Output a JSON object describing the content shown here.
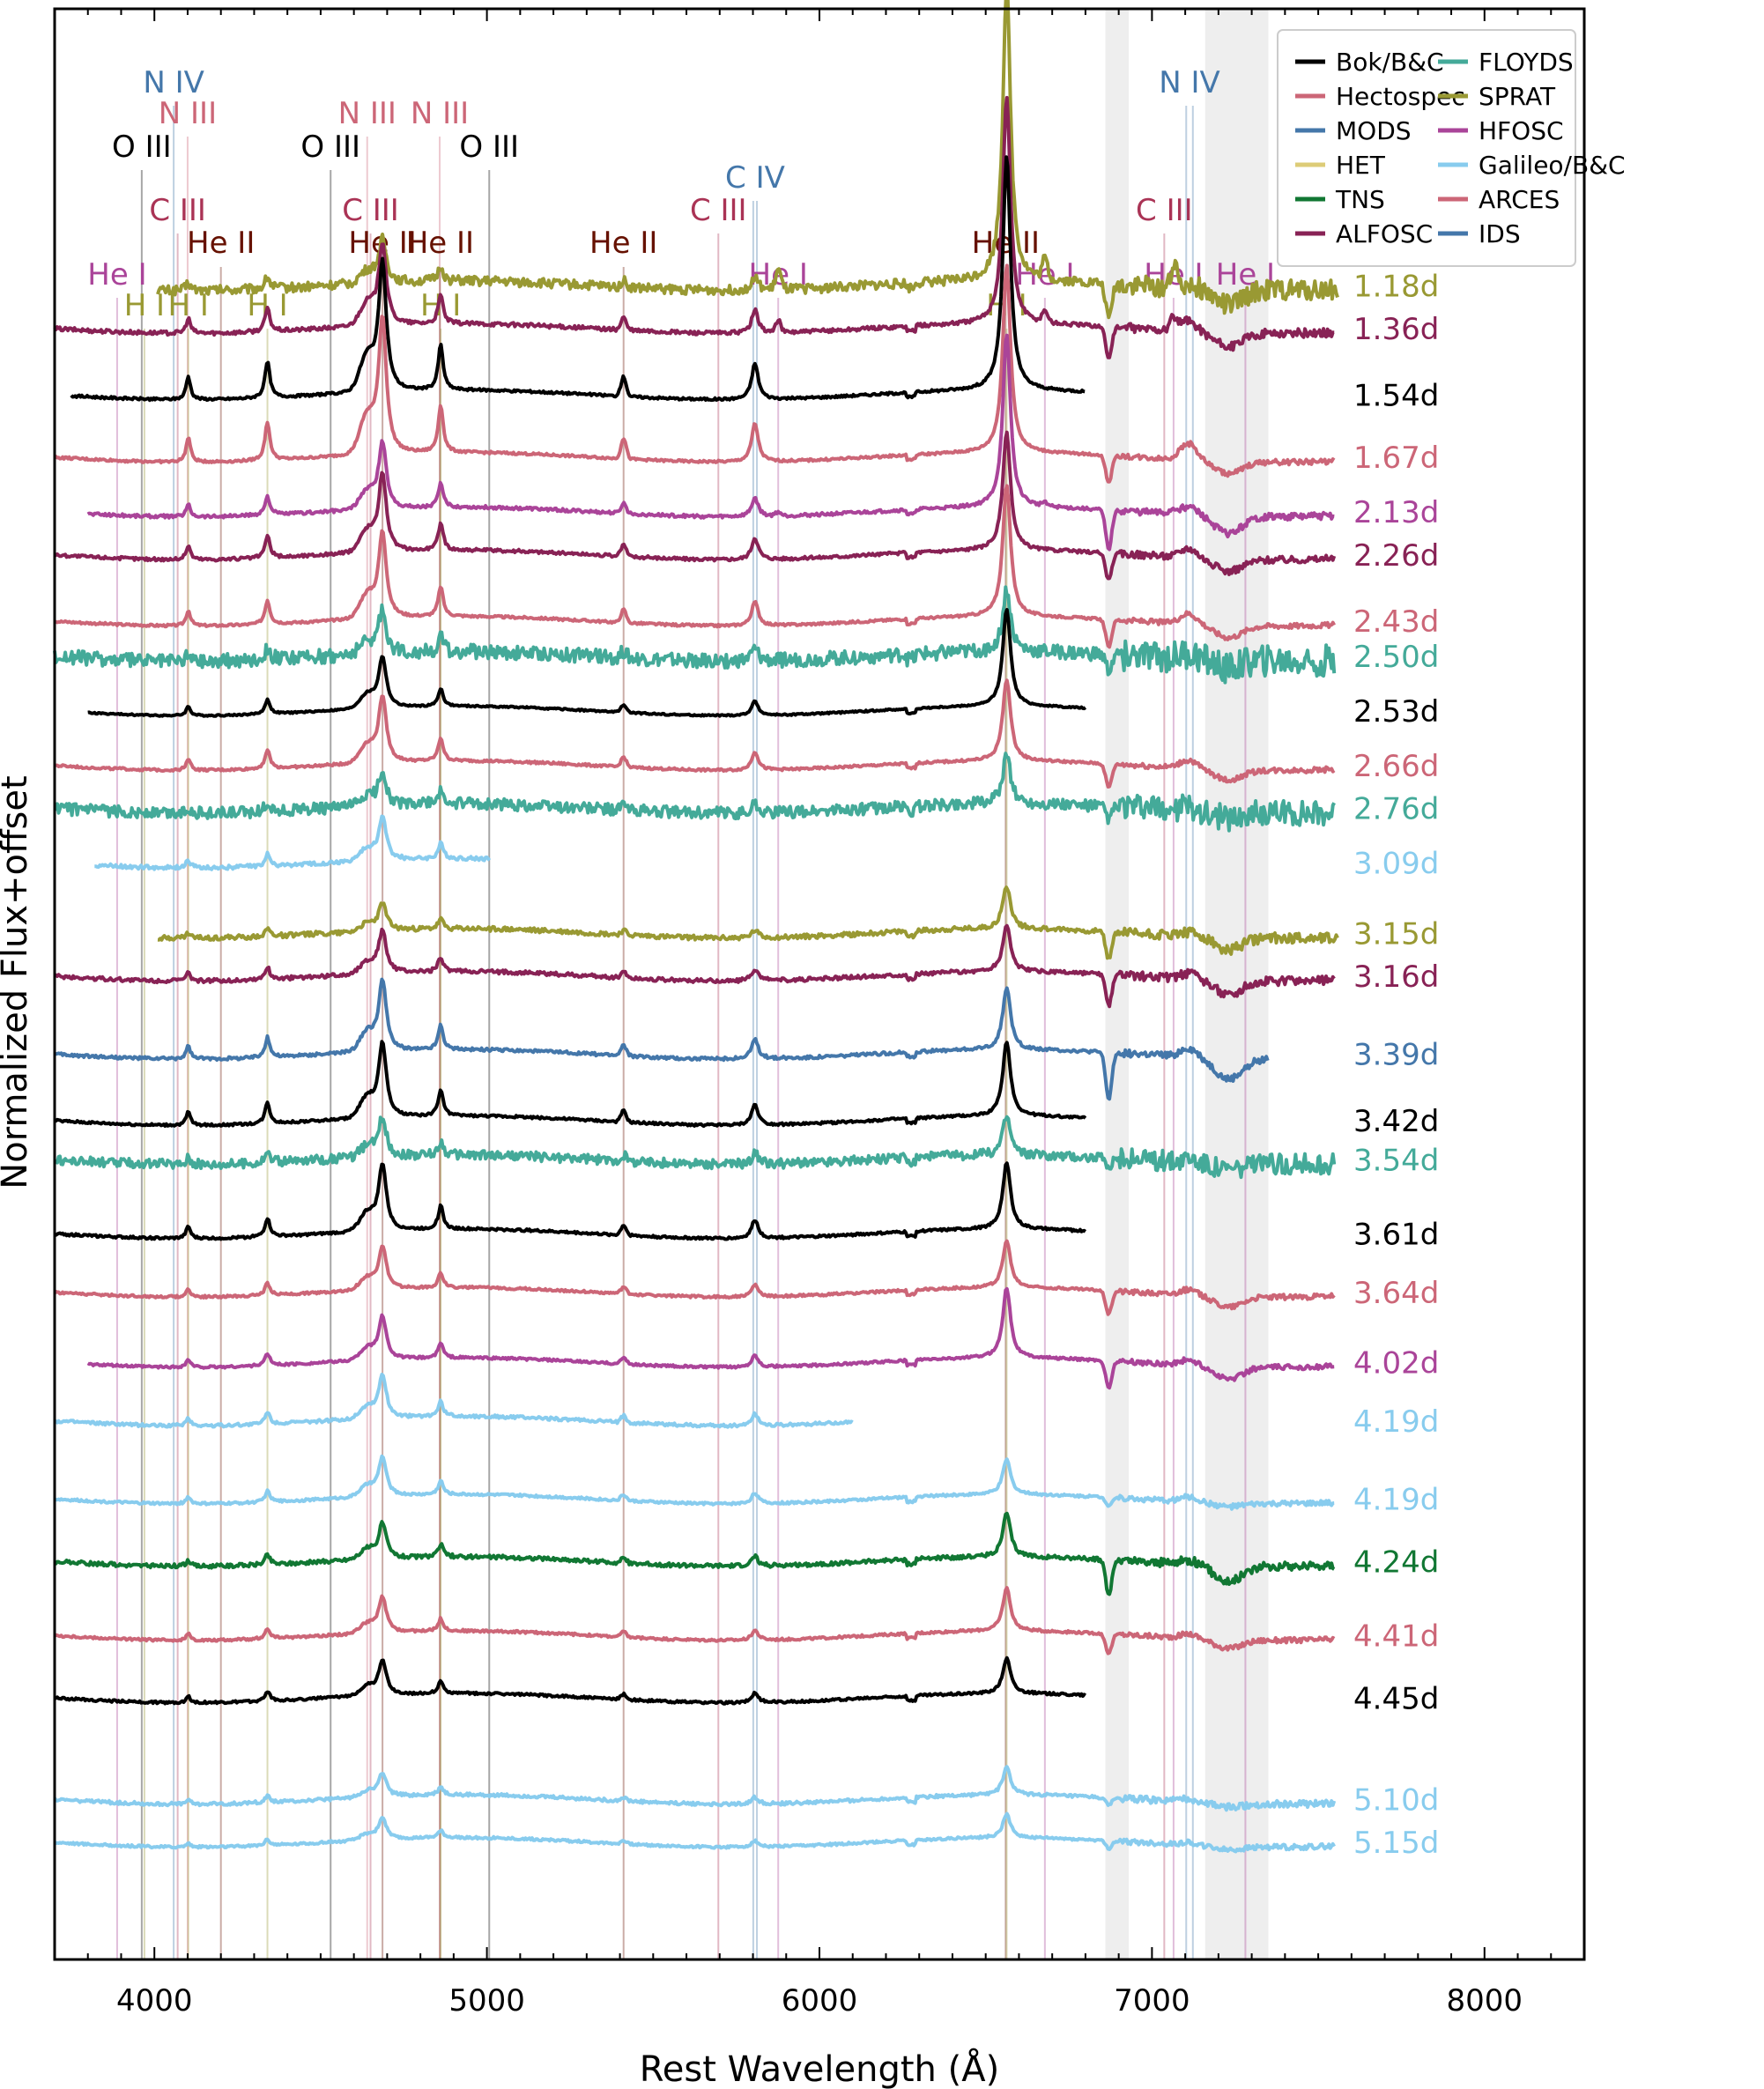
{
  "chart_data": {
    "type": "line",
    "title": "",
    "xlabel": "Rest Wavelength (Å)",
    "ylabel": "Normalized Flux+offset",
    "xlim": [
      3700,
      8300
    ],
    "ylim": [
      -1.0,
      24.0
    ],
    "x_ticks": [
      4000,
      5000,
      6000,
      7000,
      8000
    ],
    "grid": false,
    "legend_position": "top-right",
    "telluric_bands": [
      [
        6860,
        6930
      ],
      [
        7160,
        7350
      ]
    ],
    "instruments": [
      {
        "name": "Bok/B&C",
        "color": "#000000"
      },
      {
        "name": "Hectospec",
        "color": "#cc6677"
      },
      {
        "name": "MODS",
        "color": "#4477aa"
      },
      {
        "name": "HET",
        "color": "#ddcc77"
      },
      {
        "name": "TNS",
        "color": "#117733"
      },
      {
        "name": "ALFOSC",
        "color": "#882255"
      },
      {
        "name": "FLOYDS",
        "color": "#44aa99"
      },
      {
        "name": "SPRAT",
        "color": "#999933"
      },
      {
        "name": "HFOSC",
        "color": "#aa4499"
      },
      {
        "name": "Galileo/B&C",
        "color": "#88ccee"
      },
      {
        "name": "ARCES",
        "color": "#cc6677"
      },
      {
        "name": "IDS",
        "color": "#4477aa"
      }
    ],
    "line_ids": [
      {
        "label": "N IV",
        "color": "#4477aa",
        "lines": [
          4058
        ]
      },
      {
        "label": "N III",
        "color": "#cc6677",
        "lines": [
          4100
        ]
      },
      {
        "label": "O III",
        "color": "#000000",
        "lines": [
          3962
        ]
      },
      {
        "label": "C III",
        "color": "#aa3355",
        "lines": [
          4070
        ]
      },
      {
        "label": "He II",
        "color": "#661100",
        "lines": [
          4200
        ]
      },
      {
        "label": "He I",
        "color": "#aa4499",
        "lines": [
          3888
        ]
      },
      {
        "label": "H I",
        "color": "#999933",
        "lines": [
          3970
        ]
      },
      {
        "label": "H I",
        "color": "#999933",
        "lines": [
          4102
        ]
      },
      {
        "label": "H I",
        "color": "#999933",
        "lines": [
          4340
        ]
      },
      {
        "label": "O III",
        "color": "#000000",
        "lines": [
          4530
        ]
      },
      {
        "label": "N III",
        "color": "#cc6677",
        "lines": [
          4640
        ]
      },
      {
        "label": "C III",
        "color": "#aa3355",
        "lines": [
          4650
        ]
      },
      {
        "label": "He II",
        "color": "#661100",
        "lines": [
          4686
        ]
      },
      {
        "label": "N III",
        "color": "#cc6677",
        "lines": [
          4858
        ]
      },
      {
        "label": "He II",
        "color": "#661100",
        "lines": [
          4859
        ]
      },
      {
        "label": "H I",
        "color": "#999933",
        "lines": [
          4861
        ]
      },
      {
        "label": "O III",
        "color": "#000000",
        "lines": [
          5007
        ]
      },
      {
        "label": "He II",
        "color": "#661100",
        "lines": [
          5411
        ]
      },
      {
        "label": "C III",
        "color": "#aa3355",
        "lines": [
          5696
        ]
      },
      {
        "label": "C IV",
        "color": "#4477aa",
        "lines": [
          5801,
          5812
        ]
      },
      {
        "label": "He I",
        "color": "#aa4499",
        "lines": [
          5876
        ]
      },
      {
        "label": "He II",
        "color": "#661100",
        "lines": [
          6560
        ]
      },
      {
        "label": "H I",
        "color": "#999933",
        "lines": [
          6563
        ]
      },
      {
        "label": "He I",
        "color": "#aa4499",
        "lines": [
          6678
        ]
      },
      {
        "label": "C III",
        "color": "#aa3355",
        "lines": [
          7037
        ]
      },
      {
        "label": "N IV",
        "color": "#4477aa",
        "lines": [
          7103,
          7123
        ]
      },
      {
        "label": "He I",
        "color": "#aa4499",
        "lines": [
          7065
        ]
      },
      {
        "label": "He I",
        "color": "#aa4499",
        "lines": [
          7281
        ]
      }
    ],
    "series": [
      {
        "epoch": "1.18d",
        "instrument": "SPRAT",
        "color": "#999933",
        "x_range": [
          4010,
          7560
        ],
        "offset": 20.45,
        "ha": 3.8,
        "heii": 0.55,
        "hei": 0.25,
        "noise": 0.08,
        "telluric": 0.45
      },
      {
        "epoch": "1.36d",
        "instrument": "ALFOSC",
        "color": "#882255",
        "x_range": [
          3700,
          7550
        ],
        "offset": 19.9,
        "ha": 2.9,
        "heii": 1.05,
        "hei": 0.15,
        "noise": 0.05,
        "telluric": 0.4
      },
      {
        "epoch": "1.54d",
        "instrument": "Bok/B&C",
        "color": "#000000",
        "x_range": [
          3750,
          6800
        ],
        "offset": 19.05,
        "ha": 3.0,
        "heii": 1.65,
        "hei": 0.0,
        "noise": 0.03,
        "telluric": 0.0
      },
      {
        "epoch": "1.67d",
        "instrument": "Hectospec",
        "color": "#cc6677",
        "x_range": [
          3700,
          7550
        ],
        "offset": 18.25,
        "ha": 2.4,
        "heii": 1.75,
        "hei": 0.0,
        "noise": 0.03,
        "telluric": 0.35
      },
      {
        "epoch": "2.13d",
        "instrument": "HFOSC",
        "color": "#aa4499",
        "x_range": [
          3800,
          7550
        ],
        "offset": 17.55,
        "ha": 2.2,
        "heii": 0.85,
        "hei": 0.05,
        "noise": 0.04,
        "telluric": 0.5
      },
      {
        "epoch": "2.26d",
        "instrument": "ALFOSC",
        "color": "#882255",
        "x_range": [
          3700,
          7550
        ],
        "offset": 17.0,
        "ha": 1.5,
        "heii": 1.0,
        "hei": 0.0,
        "noise": 0.04,
        "telluric": 0.35
      },
      {
        "epoch": "2.43d",
        "instrument": "Hectospec",
        "color": "#cc6677",
        "x_range": [
          3700,
          7550
        ],
        "offset": 16.15,
        "ha": 1.7,
        "heii": 1.1,
        "hei": 0.0,
        "noise": 0.03,
        "telluric": 0.35
      },
      {
        "epoch": "2.50d",
        "instrument": "FLOYDS",
        "color": "#44aa99",
        "x_range": [
          3700,
          7550
        ],
        "offset": 15.7,
        "ha": 0.8,
        "heii": 0.55,
        "hei": 0.0,
        "noise": 0.12,
        "telluric": 0.2
      },
      {
        "epoch": "2.53d",
        "instrument": "Bok/B&C",
        "color": "#000000",
        "x_range": [
          3800,
          6800
        ],
        "offset": 15.0,
        "ha": 1.25,
        "heii": 0.65,
        "hei": 0.0,
        "noise": 0.02,
        "telluric": 0.0
      },
      {
        "epoch": "2.66d",
        "instrument": "Hectospec",
        "color": "#cc6677",
        "x_range": [
          3700,
          7550
        ],
        "offset": 14.3,
        "ha": 1.05,
        "heii": 0.85,
        "hei": 0.0,
        "noise": 0.03,
        "telluric": 0.3
      },
      {
        "epoch": "2.76d",
        "instrument": "FLOYDS",
        "color": "#44aa99",
        "x_range": [
          3700,
          7550
        ],
        "offset": 13.75,
        "ha": 0.65,
        "heii": 0.45,
        "hei": 0.0,
        "noise": 0.1,
        "telluric": 0.15
      },
      {
        "epoch": "3.09d",
        "instrument": "Galileo/B&C",
        "color": "#88ccee",
        "x_range": [
          3820,
          5010
        ],
        "offset": 13.05,
        "ha": 0.0,
        "heii": 0.55,
        "hei": 0.0,
        "noise": 0.05,
        "telluric": 0.0
      },
      {
        "epoch": "3.15d",
        "instrument": "SPRAT",
        "color": "#999933",
        "x_range": [
          4010,
          7560
        ],
        "offset": 12.15,
        "ha": 0.55,
        "heii": 0.35,
        "hei": 0.0,
        "noise": 0.04,
        "telluric": 0.35
      },
      {
        "epoch": "3.16d",
        "instrument": "ALFOSC",
        "color": "#882255",
        "x_range": [
          3700,
          7550
        ],
        "offset": 11.6,
        "ha": 0.6,
        "heii": 0.55,
        "hei": 0.0,
        "noise": 0.05,
        "telluric": 0.4
      },
      {
        "epoch": "3.39d",
        "instrument": "MODS",
        "color": "#4477aa",
        "x_range": [
          3700,
          7350
        ],
        "offset": 10.6,
        "ha": 0.8,
        "heii": 0.9,
        "hei": 0.0,
        "noise": 0.04,
        "telluric": 0.6
      },
      {
        "epoch": "3.42d",
        "instrument": "Bok/B&C",
        "color": "#000000",
        "x_range": [
          3700,
          6800
        ],
        "offset": 9.75,
        "ha": 0.95,
        "heii": 0.95,
        "hei": 0.0,
        "noise": 0.03,
        "telluric": 0.0
      },
      {
        "epoch": "3.54d",
        "instrument": "FLOYDS",
        "color": "#44aa99",
        "x_range": [
          3700,
          7550
        ],
        "offset": 9.25,
        "ha": 0.5,
        "heii": 0.5,
        "hei": 0.0,
        "noise": 0.08,
        "telluric": 0.15
      },
      {
        "epoch": "3.61d",
        "instrument": "Bok/B&C",
        "color": "#000000",
        "x_range": [
          3700,
          6800
        ],
        "offset": 8.3,
        "ha": 0.85,
        "heii": 0.85,
        "hei": 0.0,
        "noise": 0.03,
        "telluric": 0.0
      },
      {
        "epoch": "3.64d",
        "instrument": "Hectospec",
        "color": "#cc6677",
        "x_range": [
          3700,
          7550
        ],
        "offset": 7.55,
        "ha": 0.6,
        "heii": 0.55,
        "hei": 0.0,
        "noise": 0.03,
        "telluric": 0.3
      },
      {
        "epoch": "4.02d",
        "instrument": "HFOSC",
        "color": "#aa4499",
        "x_range": [
          3800,
          7550
        ],
        "offset": 6.65,
        "ha": 0.9,
        "heii": 0.55,
        "hei": 0.0,
        "noise": 0.03,
        "telluric": 0.35
      },
      {
        "epoch": "4.19d",
        "instrument": "Galileo/B&C",
        "color": "#88ccee",
        "x_range": [
          3700,
          6100
        ],
        "offset": 5.9,
        "ha": 0.0,
        "heii": 0.55,
        "hei": 0.0,
        "noise": 0.04,
        "telluric": 0.0
      },
      {
        "epoch": "4.19d",
        "instrument": "Galileo/B&C",
        "color": "#88ccee",
        "x_range": [
          3700,
          7550
        ],
        "offset": 4.9,
        "ha": 0.45,
        "heii": 0.5,
        "hei": 0.0,
        "noise": 0.03,
        "telluric": 0.1
      },
      {
        "epoch": "4.24d",
        "instrument": "TNS",
        "color": "#117733",
        "x_range": [
          3700,
          7550
        ],
        "offset": 4.1,
        "ha": 0.55,
        "heii": 0.45,
        "hei": 0.0,
        "noise": 0.05,
        "telluric": 0.45
      },
      {
        "epoch": "4.41d",
        "instrument": "Hectospec",
        "color": "#cc6677",
        "x_range": [
          3700,
          7550
        ],
        "offset": 3.15,
        "ha": 0.55,
        "heii": 0.45,
        "hei": 0.0,
        "noise": 0.03,
        "telluric": 0.25
      },
      {
        "epoch": "4.45d",
        "instrument": "Bok/B&C",
        "color": "#000000",
        "x_range": [
          3700,
          6800
        ],
        "offset": 2.35,
        "ha": 0.45,
        "heii": 0.45,
        "hei": 0.0,
        "noise": 0.03,
        "telluric": 0.0
      },
      {
        "epoch": "5.10d",
        "instrument": "Galileo/B&C",
        "color": "#88ccee",
        "x_range": [
          3700,
          7550
        ],
        "offset": 1.05,
        "ha": 0.35,
        "heii": 0.3,
        "hei": 0.0,
        "noise": 0.04,
        "telluric": 0.1
      },
      {
        "epoch": "5.15d",
        "instrument": "Galileo/B&C",
        "color": "#88ccee",
        "x_range": [
          3700,
          7550
        ],
        "offset": 0.5,
        "ha": 0.3,
        "heii": 0.28,
        "hei": 0.0,
        "noise": 0.03,
        "telluric": 0.1
      }
    ]
  }
}
